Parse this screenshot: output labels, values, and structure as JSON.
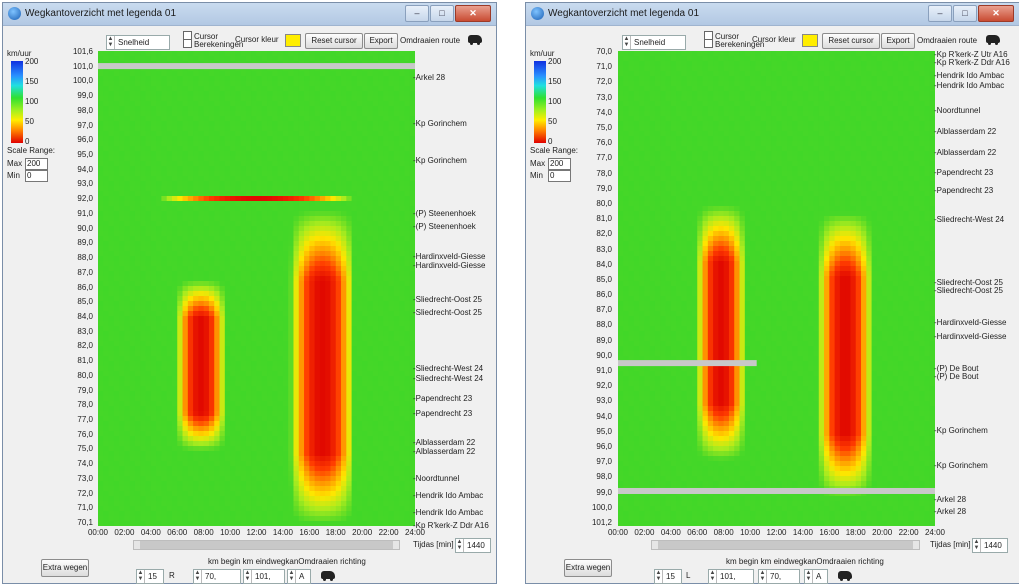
{
  "windows": [
    {
      "title": "Wegkantoverzicht met legenda 01",
      "measure_select": "Snelheid",
      "cursor_label": "Cursor",
      "berekeningen_label": "Berekeningen",
      "cursor_color_label": "Cursor kleur",
      "cursor_color": "#ffee00",
      "reset_cursor": "Reset cursor",
      "export": "Export",
      "reverse_route": "Omdraaien route",
      "legend_unit": "km/uur",
      "legend_ticks": [
        "200",
        "150",
        "100",
        "50",
        "0"
      ],
      "scale_range": "Scale Range:",
      "max_label": "Max",
      "max_value": "200",
      "min_label": "Min",
      "min_value": "0",
      "y_ticks": [
        "101,6",
        "101,0",
        "100,0",
        "99,0",
        "98,0",
        "97,0",
        "96,0",
        "95,0",
        "94,0",
        "93,0",
        "92,0",
        "91,0",
        "90,0",
        "89,0",
        "88,0",
        "87,0",
        "86,0",
        "85,0",
        "84,0",
        "83,0",
        "82,0",
        "81,0",
        "80,0",
        "79,0",
        "78,0",
        "77,0",
        "76,0",
        "75,0",
        "74,0",
        "73,0",
        "72,0",
        "71,0",
        "70,1"
      ],
      "x_ticks": [
        "00:00",
        "02:00",
        "04:00",
        "06:00",
        "08:00",
        "10:00",
        "12:00",
        "14:00",
        "16:00",
        "18:00",
        "20:00",
        "22:00",
        "24:00"
      ],
      "location_labels": [
        "Arkel 28",
        "Kp Gorinchem",
        "Kp Gorinchem",
        "(P) Steenenhoek",
        "(P) Steenenhoek",
        "Hardinxveld-Giesse",
        "Hardinxveld-Giesse",
        "Sliedrecht-Oost 25",
        "Sliedrecht-Oost 25",
        "Sliedrecht-West 24",
        "Sliedrecht-West 24",
        "Papendrecht 23",
        "Papendrecht 23",
        "Alblasserdam 22",
        "Alblasserdam 22",
        "Noordtunnel",
        "Hendrik Ido Ambac",
        "Hendrik Ido Ambac",
        "Kp R'kerk-Z Ddr A16"
      ],
      "periode_label": "Tijdas [min]",
      "periode_value": "1440",
      "extra_wegen": "Extra wegen",
      "road_number": "15",
      "side": "R",
      "km_begin": "70,",
      "km_end": "101,",
      "direction": "A",
      "bottom_caption": "km begin km eindwegkanOmdraaien richting"
    },
    {
      "title": "Wegkantoverzicht met legenda 01",
      "measure_select": "Snelheid",
      "cursor_label": "Cursor",
      "berekeningen_label": "Berekeningen",
      "cursor_color_label": "Cursor kleur",
      "cursor_color": "#ffee00",
      "reset_cursor": "Reset cursor",
      "export": "Export",
      "reverse_route": "Omdraaien route",
      "legend_unit": "km/uur",
      "legend_ticks": [
        "200",
        "150",
        "100",
        "50",
        "0"
      ],
      "scale_range": "Scale Range:",
      "max_label": "Max",
      "max_value": "200",
      "min_label": "Min",
      "min_value": "0",
      "y_ticks": [
        "70,0",
        "71,0",
        "72,0",
        "73,0",
        "74,0",
        "75,0",
        "76,0",
        "77,0",
        "78,0",
        "79,0",
        "80,0",
        "81,0",
        "82,0",
        "83,0",
        "84,0",
        "85,0",
        "86,0",
        "87,0",
        "88,0",
        "89,0",
        "90,0",
        "91,0",
        "92,0",
        "93,0",
        "94,0",
        "95,0",
        "96,0",
        "97,0",
        "98,0",
        "99,0",
        "100,0",
        "101,2"
      ],
      "x_ticks": [
        "00:00",
        "02:00",
        "04:00",
        "06:00",
        "08:00",
        "10:00",
        "12:00",
        "14:00",
        "16:00",
        "18:00",
        "20:00",
        "22:00",
        "24:00"
      ],
      "location_labels": [
        "Kp R'kerk-Z Utr A16",
        "Kp R'kerk-Z Ddr A16",
        "Hendrik Ido Ambac",
        "Hendrik Ido Ambac",
        "Noordtunnel",
        "Alblasserdam 22",
        "Alblasserdam 22",
        "Papendrecht 23",
        "Papendrecht 23",
        "Sliedrecht-West 24",
        "Sliedrecht-Oost 25",
        "Sliedrecht-Oost 25",
        "Hardinxveld-Giesse",
        "Hardinxveld-Giesse",
        "(P) De Bout",
        "(P) De Bout",
        "Kp Gorinchem",
        "Kp Gorinchem",
        "Arkel 28",
        "Arkel 28"
      ],
      "periode_label": "Tijdas [min]",
      "periode_value": "1440",
      "extra_wegen": "Extra wegen",
      "road_number": "15",
      "side": "L",
      "km_begin": "101,",
      "km_end": "70,",
      "direction": "A",
      "bottom_caption": "km begin km eindwegkanOmdraaien richting"
    }
  ],
  "chart_data": [
    {
      "type": "heatmap",
      "x_range": [
        "00:00",
        "24:00"
      ],
      "y_range": [
        70.1,
        101.6
      ],
      "value_unit": "km/uur",
      "colorscale_range": [
        0,
        200
      ],
      "gap_rows_km": [
        100.6
      ],
      "congestion_zones": [
        {
          "t_start_h": 5.8,
          "t_end_h": 9.6,
          "km_from": 75.0,
          "km_to": 86.5,
          "peak_t_h": 7.8
        },
        {
          "t_start_h": 14.2,
          "t_end_h": 19.2,
          "km_from": 70.1,
          "km_to": 91.2,
          "peak_t_h": 17.0
        },
        {
          "t_start_h": 5.0,
          "t_end_h": 20.0,
          "km_from": 91.8,
          "km_to": 92.1,
          "peak_t_h": 12.0
        }
      ]
    },
    {
      "type": "heatmap",
      "x_range": [
        "00:00",
        "24:00"
      ],
      "y_range": [
        70.0,
        101.2
      ],
      "value_unit": "km/uur",
      "colorscale_range": [
        0,
        200
      ],
      "gap_rows_km": [
        90.5,
        98.9
      ],
      "congestion_zones": [
        {
          "t_start_h": 5.6,
          "t_end_h": 9.4,
          "km_from": 80.0,
          "km_to": 97.0,
          "peak_t_h": 7.8
        },
        {
          "t_start_h": 14.8,
          "t_end_h": 19.0,
          "km_from": 80.5,
          "km_to": 99.5,
          "peak_t_h": 17.2
        }
      ]
    }
  ]
}
